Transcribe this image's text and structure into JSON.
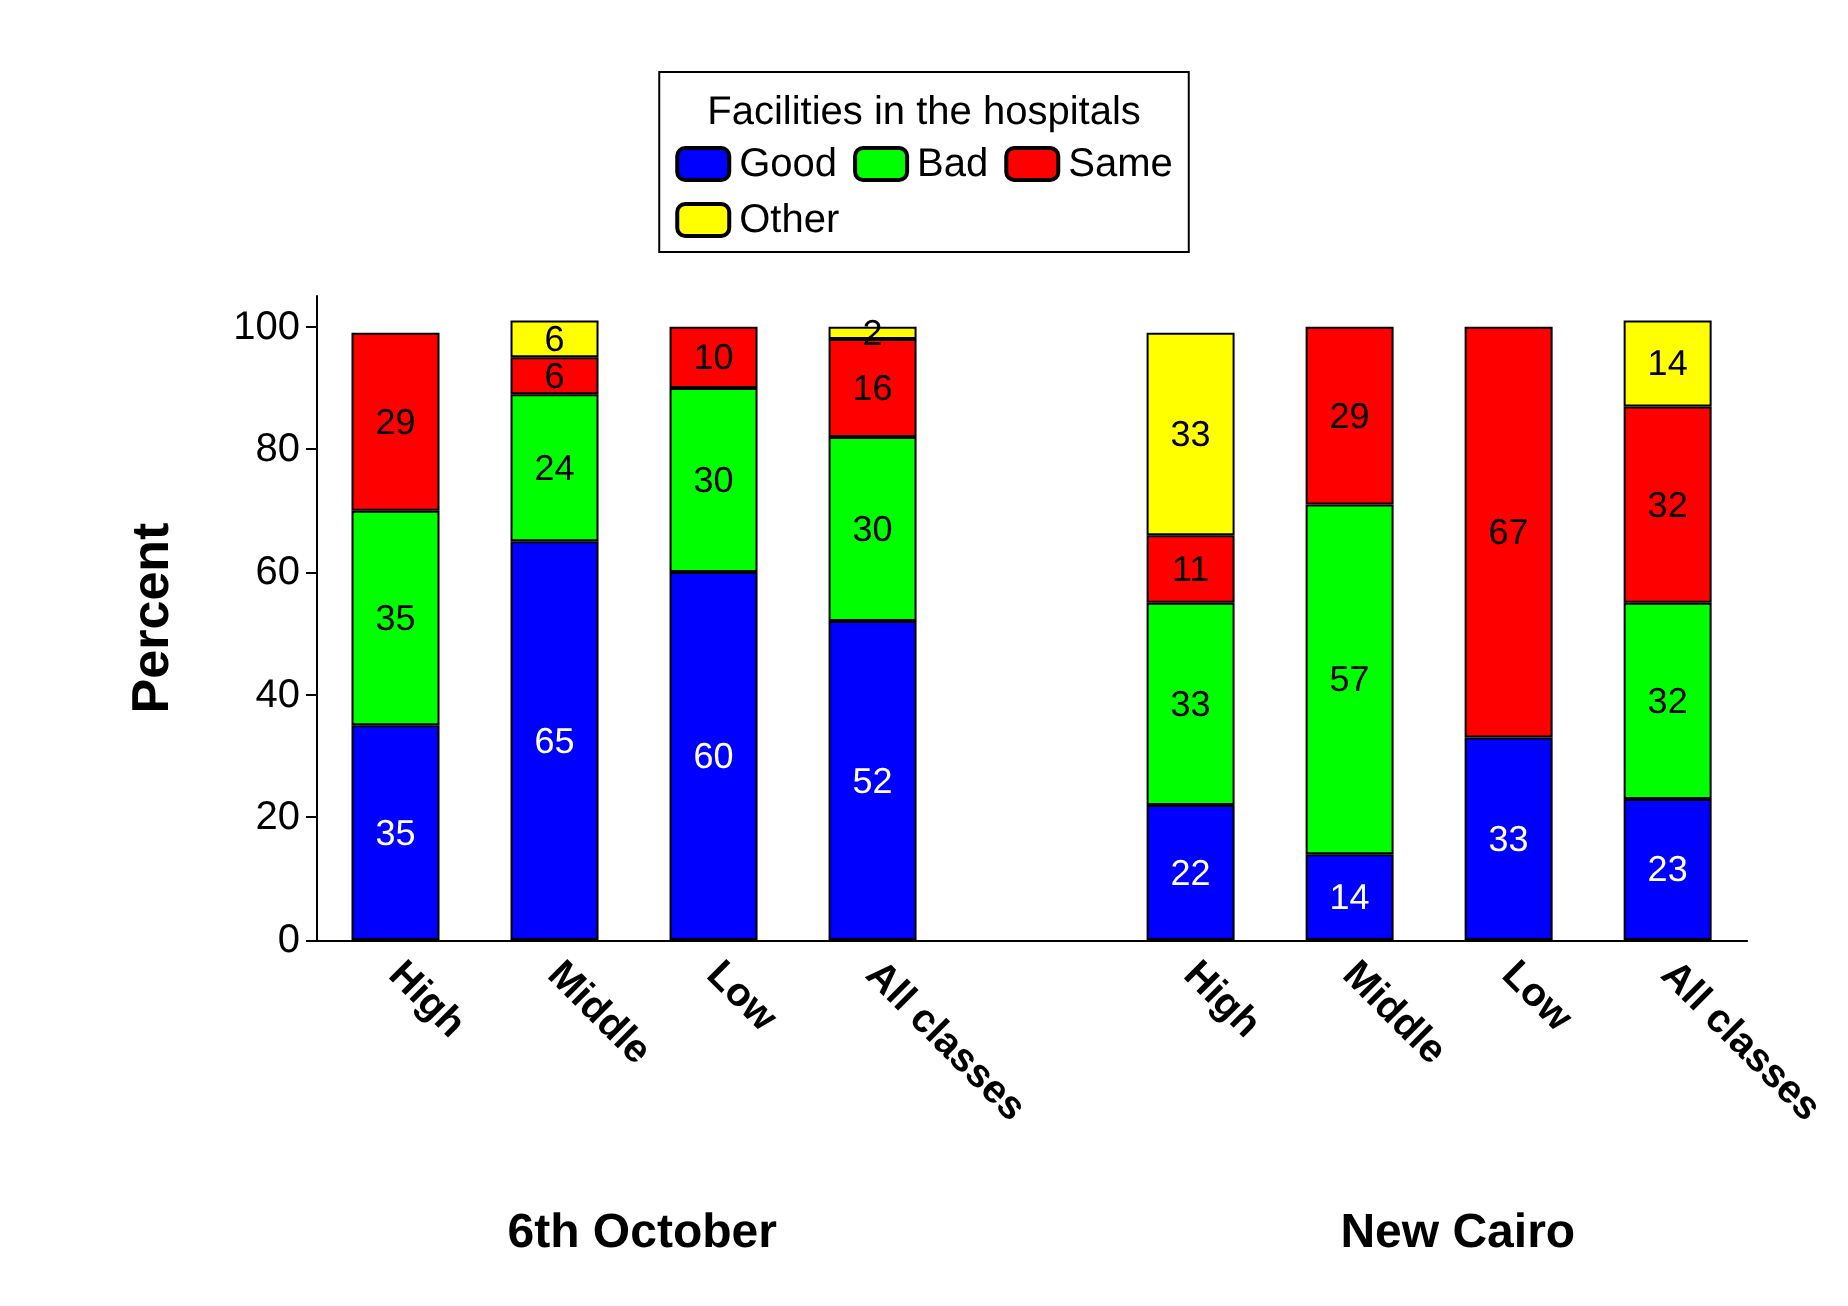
{
  "chart_data": {
    "type": "bar",
    "stacked": true,
    "legend_title": "Facilities in the hospitals",
    "legend": "top",
    "ylabel": "Percent",
    "ylim": [
      0,
      105
    ],
    "yticks": [
      0,
      20,
      40,
      60,
      80,
      100
    ],
    "grid": false,
    "data_labels": true,
    "categories": [
      "High",
      "Middle",
      "Low",
      "All classes",
      null,
      "High",
      "Middle",
      "Low",
      "All classes"
    ],
    "annotations": [
      "6th October",
      "New Cairo"
    ],
    "series": [
      {
        "name": "Good",
        "color": "#0000ff",
        "values": [
          35,
          65,
          60,
          52,
          null,
          22,
          14,
          33,
          23
        ]
      },
      {
        "name": "Bad",
        "color": "#00ff00",
        "values": [
          35,
          24,
          30,
          30,
          null,
          33,
          57,
          null,
          32
        ]
      },
      {
        "name": "Same",
        "color": "#ff0000",
        "values": [
          29,
          6,
          10,
          16,
          null,
          11,
          29,
          67,
          32
        ]
      },
      {
        "name": "Other",
        "color": "#ffff00",
        "values": [
          null,
          6,
          null,
          2,
          null,
          33,
          null,
          null,
          14
        ]
      }
    ]
  }
}
